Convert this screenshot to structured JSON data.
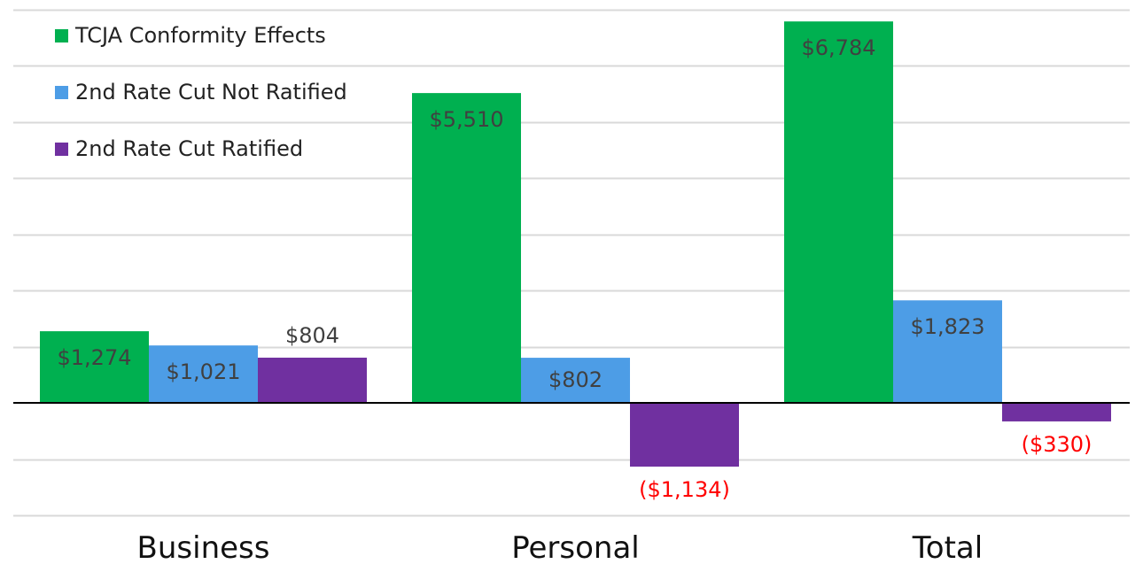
{
  "chart_data": {
    "type": "bar",
    "title": "",
    "xlabel": "",
    "ylabel": "",
    "ylim": [
      -2000,
      7000
    ],
    "grid": true,
    "legend": "top-left",
    "categories": [
      "Business",
      "Personal",
      "Total"
    ],
    "series": [
      {
        "name": "TCJA Conformity Effects",
        "color": "#00b050",
        "values": [
          1274,
          5510,
          6784
        ],
        "labels": [
          "$1,274",
          "$5,510",
          "$6,784"
        ]
      },
      {
        "name": "2nd Rate Cut Not Ratified",
        "color": "#4d9de6",
        "values": [
          1021,
          802,
          1823
        ],
        "labels": [
          "$1,021",
          "$802",
          "$1,823"
        ]
      },
      {
        "name": "2nd Rate Cut Ratified",
        "color": "#7030a0",
        "values": [
          804,
          -1134,
          -330
        ],
        "labels": [
          "$804",
          "($1,134)",
          "($330)"
        ]
      }
    ],
    "label_color": "#404040",
    "negative_label_color": "#ff0000",
    "gridline_color": "#d9d9d9",
    "axis_color": "#000000"
  }
}
